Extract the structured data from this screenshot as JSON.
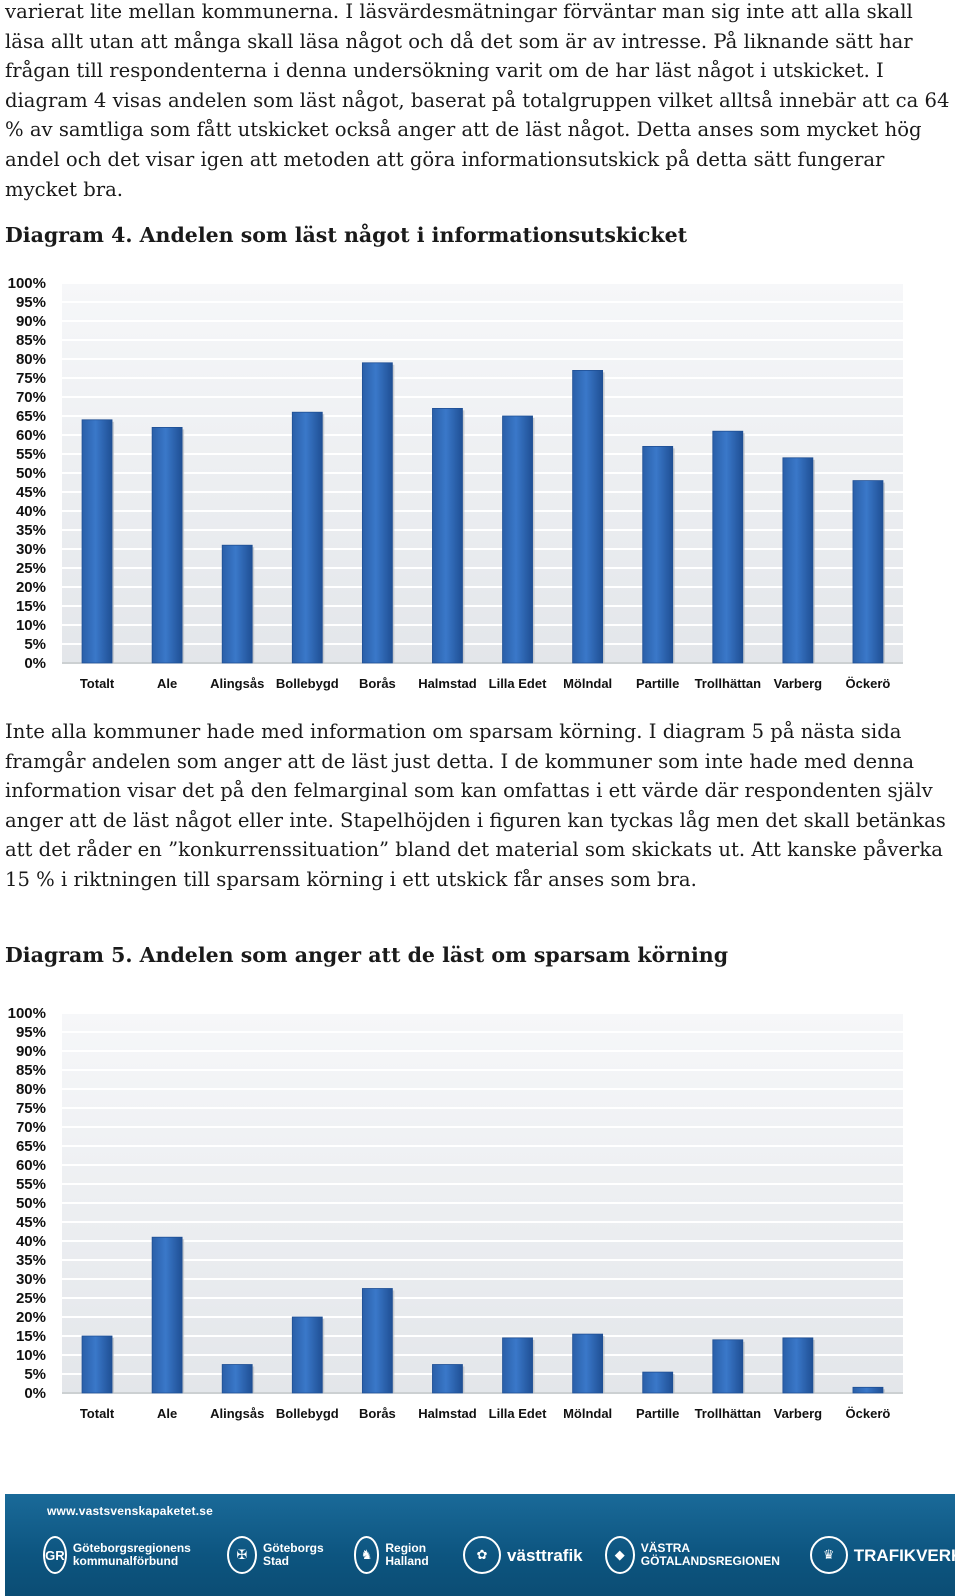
{
  "paragraph1": "varierat lite mellan kommunerna. I läsvärdesmätningar förväntar man sig inte att alla skall läsa allt utan att många skall läsa något och då det som är av intresse. På liknande sätt har frågan till respondenterna i denna undersökning varit om de har läst något i utskicket. I diagram 4 visas andelen som läst något, baserat på totalgruppen vilket alltså innebär att ca 64 % av samtliga som fått utskicket också anger att de läst något. Detta anses som mycket hög andel och det visar igen att metoden att göra informationsutskick på detta sätt fungerar mycket bra.",
  "caption1": "Diagram 4. Andelen som läst något i informationsutskicket",
  "paragraph2": "Inte alla kommuner hade med information om sparsam körning. I diagram 5 på nästa sida framgår andelen som anger att de läst just detta. I de kommuner som inte hade med denna information visar det på den felmarginal som kan omfattas i ett värde där respondenten själv anger att de läst något eller inte. Stapelhöjden i figuren kan tyckas låg men det skall betänkas att det råder en ”konkurrenssituation” bland det material som skickats ut. Att kanske påverka 15 % i riktningen till sparsam körning i ett utskick får anses som bra.",
  "caption2": "Diagram 5. Andelen som anger att de läst om sparsam körning",
  "chart_data": [
    {
      "type": "bar",
      "categories": [
        "Totalt",
        "Ale",
        "Alingsås",
        "Bollebygd",
        "Borås",
        "Halmstad",
        "Lilla Edet",
        "Mölndal",
        "Partille",
        "Trollhättan",
        "Varberg",
        "Öckerö"
      ],
      "values": [
        64,
        62,
        31,
        66,
        79,
        67,
        65,
        77,
        57,
        61,
        54,
        48
      ],
      "yticks": [
        "0%",
        "5%",
        "10%",
        "15%",
        "20%",
        "25%",
        "30%",
        "35%",
        "40%",
        "45%",
        "50%",
        "55%",
        "60%",
        "65%",
        "70%",
        "75%",
        "80%",
        "85%",
        "90%",
        "95%",
        "100%"
      ],
      "ylim": [
        0,
        100
      ],
      "grid": true,
      "bar_color": "#3a78c9"
    },
    {
      "type": "bar",
      "categories": [
        "Totalt",
        "Ale",
        "Alingsås",
        "Bollebygd",
        "Borås",
        "Halmstad",
        "Lilla Edet",
        "Mölndal",
        "Partille",
        "Trollhättan",
        "Varberg",
        "Öckerö"
      ],
      "values": [
        15,
        41,
        7.5,
        20,
        27.5,
        7.5,
        14.5,
        15.5,
        5.5,
        14,
        14.5,
        1.5
      ],
      "yticks": [
        "0%",
        "5%",
        "10%",
        "15%",
        "20%",
        "25%",
        "30%",
        "35%",
        "40%",
        "45%",
        "50%",
        "55%",
        "60%",
        "65%",
        "70%",
        "75%",
        "80%",
        "85%",
        "90%",
        "95%",
        "100%"
      ],
      "ylim": [
        0,
        100
      ],
      "grid": true,
      "bar_color": "#3a78c9"
    }
  ],
  "footer": {
    "url": "www.vastsvenskapaketet.se",
    "logos": [
      {
        "icon": "gr-logo-icon",
        "mark": "GR",
        "text": "Göteborgsregionens kommunalförbund"
      },
      {
        "icon": "goteborg-crest-icon",
        "mark": "✠",
        "text": "Göteborgs Stad"
      },
      {
        "icon": "region-halland-icon",
        "mark": "♞",
        "text": "Region Halland"
      },
      {
        "icon": "vasttrafik-icon",
        "mark": "✿",
        "text": "västtrafik"
      },
      {
        "icon": "vastra-gotaland-icon",
        "mark": "◆",
        "text": "VÄSTRA GÖTALANDSREGIONEN"
      },
      {
        "icon": "trafikverket-icon",
        "mark": "♛",
        "text": "TRAFIKVERKET"
      }
    ]
  }
}
